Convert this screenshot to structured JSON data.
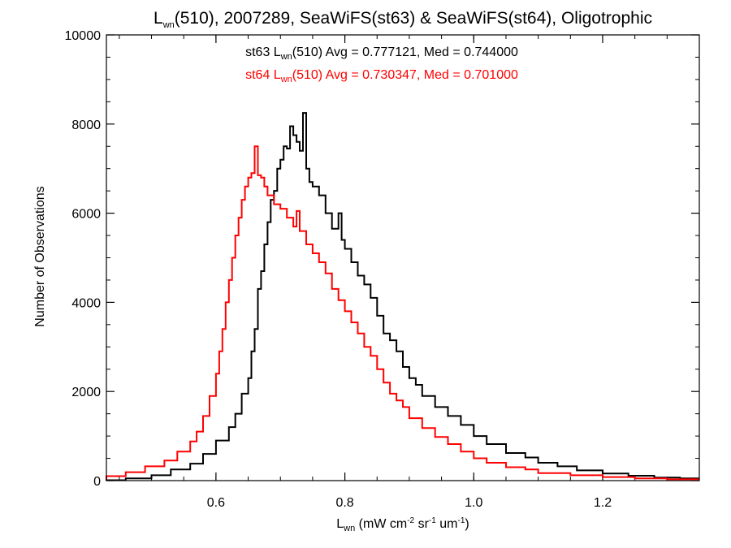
{
  "chart_data": {
    "type": "line",
    "subtype": "step-histogram",
    "title": {
      "base": "L",
      "base_sub": "wn",
      "rest": "(510), 2007289, SeaWiFS(st63) & SeaWiFS(st64), Oligotrophic"
    },
    "xlabel": {
      "base": "L",
      "base_sub": "wn",
      "p1": " (mW cm",
      "sup1": "-2",
      "p2": " sr",
      "sup2": "-1",
      "p3": " um",
      "sup3": "-1",
      "p4": ")"
    },
    "ylabel": "Number of Observations",
    "xlim": [
      0.43,
      1.35
    ],
    "ylim": [
      0,
      10000
    ],
    "x_ticks": [
      0.6,
      0.8,
      1.0,
      1.2
    ],
    "x_tick_labels": [
      "0.6",
      "0.8",
      "1.0",
      "1.2"
    ],
    "y_ticks": [
      0,
      2000,
      4000,
      6000,
      8000,
      10000
    ],
    "y_tick_labels": [
      "0",
      "2000",
      "4000",
      "6000",
      "8000",
      "10000"
    ],
    "grid": false,
    "legend_placement": "top-center",
    "series": [
      {
        "color": "#000000",
        "legend": {
          "p1": "st63 L",
          "sub": "wn",
          "p2": "(510) Avg = 0.777121, Med = 0.744000"
        },
        "points": [
          [
            0.43,
            0
          ],
          [
            0.46,
            10
          ],
          [
            0.5,
            50
          ],
          [
            0.53,
            120
          ],
          [
            0.56,
            250
          ],
          [
            0.58,
            380
          ],
          [
            0.6,
            600
          ],
          [
            0.62,
            900
          ],
          [
            0.63,
            1200
          ],
          [
            0.64,
            1500
          ],
          [
            0.65,
            1950
          ],
          [
            0.655,
            2300
          ],
          [
            0.66,
            2900
          ],
          [
            0.665,
            3400
          ],
          [
            0.67,
            4300
          ],
          [
            0.675,
            4700
          ],
          [
            0.68,
            5300
          ],
          [
            0.685,
            5800
          ],
          [
            0.69,
            6300
          ],
          [
            0.695,
            6500
          ],
          [
            0.7,
            7000
          ],
          [
            0.705,
            7200
          ],
          [
            0.71,
            7500
          ],
          [
            0.715,
            7450
          ],
          [
            0.72,
            7950
          ],
          [
            0.725,
            7750
          ],
          [
            0.73,
            7600
          ],
          [
            0.735,
            7400
          ],
          [
            0.74,
            8250
          ],
          [
            0.745,
            7000
          ],
          [
            0.75,
            6700
          ],
          [
            0.76,
            6600
          ],
          [
            0.77,
            6400
          ],
          [
            0.78,
            6000
          ],
          [
            0.79,
            5650
          ],
          [
            0.795,
            6000
          ],
          [
            0.8,
            5400
          ],
          [
            0.81,
            5200
          ],
          [
            0.82,
            4900
          ],
          [
            0.83,
            4600
          ],
          [
            0.84,
            4400
          ],
          [
            0.85,
            4100
          ],
          [
            0.86,
            3700
          ],
          [
            0.87,
            3300
          ],
          [
            0.88,
            3150
          ],
          [
            0.89,
            2900
          ],
          [
            0.9,
            2550
          ],
          [
            0.91,
            2300
          ],
          [
            0.92,
            2150
          ],
          [
            0.94,
            1900
          ],
          [
            0.96,
            1650
          ],
          [
            0.98,
            1450
          ],
          [
            1.0,
            1250
          ],
          [
            1.02,
            1000
          ],
          [
            1.05,
            820
          ],
          [
            1.08,
            620
          ],
          [
            1.1,
            520
          ],
          [
            1.13,
            400
          ],
          [
            1.16,
            320
          ],
          [
            1.2,
            230
          ],
          [
            1.24,
            160
          ],
          [
            1.28,
            110
          ],
          [
            1.32,
            70
          ],
          [
            1.35,
            50
          ]
        ]
      },
      {
        "color": "#ff0000",
        "legend": {
          "p1": "st64 L",
          "sub": "wn",
          "p2": "(510) Avg = 0.730347, Med = 0.701000"
        },
        "points": [
          [
            0.43,
            20
          ],
          [
            0.46,
            100
          ],
          [
            0.49,
            190
          ],
          [
            0.52,
            320
          ],
          [
            0.54,
            450
          ],
          [
            0.56,
            650
          ],
          [
            0.57,
            880
          ],
          [
            0.58,
            1100
          ],
          [
            0.59,
            1450
          ],
          [
            0.6,
            1900
          ],
          [
            0.605,
            2400
          ],
          [
            0.61,
            2900
          ],
          [
            0.615,
            3400
          ],
          [
            0.62,
            4000
          ],
          [
            0.625,
            4500
          ],
          [
            0.63,
            5000
          ],
          [
            0.635,
            5500
          ],
          [
            0.64,
            5900
          ],
          [
            0.645,
            6300
          ],
          [
            0.65,
            6600
          ],
          [
            0.655,
            6800
          ],
          [
            0.66,
            6900
          ],
          [
            0.665,
            7500
          ],
          [
            0.67,
            6850
          ],
          [
            0.675,
            6800
          ],
          [
            0.68,
            6600
          ],
          [
            0.69,
            6400
          ],
          [
            0.7,
            6200
          ],
          [
            0.71,
            6100
          ],
          [
            0.72,
            5900
          ],
          [
            0.725,
            5700
          ],
          [
            0.73,
            6050
          ],
          [
            0.74,
            5600
          ],
          [
            0.75,
            5300
          ],
          [
            0.76,
            5100
          ],
          [
            0.77,
            4900
          ],
          [
            0.78,
            4650
          ],
          [
            0.79,
            4300
          ],
          [
            0.8,
            4050
          ],
          [
            0.81,
            3800
          ],
          [
            0.82,
            3550
          ],
          [
            0.83,
            3300
          ],
          [
            0.84,
            3000
          ],
          [
            0.85,
            2800
          ],
          [
            0.86,
            2500
          ],
          [
            0.87,
            2200
          ],
          [
            0.88,
            1950
          ],
          [
            0.89,
            1800
          ],
          [
            0.9,
            1650
          ],
          [
            0.92,
            1400
          ],
          [
            0.94,
            1180
          ],
          [
            0.96,
            980
          ],
          [
            0.98,
            820
          ],
          [
            1.0,
            650
          ],
          [
            1.02,
            500
          ],
          [
            1.05,
            400
          ],
          [
            1.08,
            300
          ],
          [
            1.1,
            250
          ],
          [
            1.15,
            170
          ],
          [
            1.2,
            120
          ],
          [
            1.25,
            80
          ],
          [
            1.3,
            50
          ],
          [
            1.35,
            30
          ]
        ]
      }
    ]
  }
}
